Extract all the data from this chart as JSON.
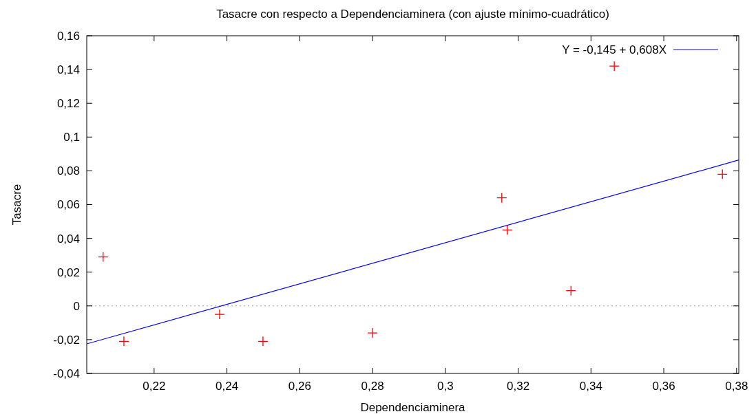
{
  "chart_data": {
    "type": "scatter",
    "title": "Tasacre con respecto a Dependenciaminera (con ajuste mínimo-cuadrático)",
    "xlabel": "Dependenciaminera",
    "ylabel": "Tasacre",
    "xlim": [
      0.2015,
      0.3806
    ],
    "ylim": [
      -0.04,
      0.16
    ],
    "xticks": [
      {
        "value": 0.22,
        "label": "0,22"
      },
      {
        "value": 0.24,
        "label": "0,24"
      },
      {
        "value": 0.26,
        "label": "0,26"
      },
      {
        "value": 0.28,
        "label": "0,28"
      },
      {
        "value": 0.3,
        "label": "0,3"
      },
      {
        "value": 0.32,
        "label": "0,32"
      },
      {
        "value": 0.34,
        "label": "0,34"
      },
      {
        "value": 0.36,
        "label": "0,36"
      },
      {
        "value": 0.38,
        "label": "0,38"
      }
    ],
    "yticks": [
      {
        "value": -0.04,
        "label": "-0,04"
      },
      {
        "value": -0.02,
        "label": "-0,02"
      },
      0,
      {
        "value": 0.02,
        "label": "0,02"
      },
      {
        "value": 0.04,
        "label": "0,04"
      },
      {
        "value": 0.06,
        "label": "0,06"
      },
      {
        "value": 0.08,
        "label": "0,08"
      },
      {
        "value": 0.1,
        "label": "0,1"
      },
      {
        "value": 0.12,
        "label": "0,12"
      },
      {
        "value": 0.14,
        "label": "0,14"
      },
      {
        "value": 0.16,
        "label": "0,16"
      }
    ],
    "grid": false,
    "legend": "top right",
    "marker": "cross",
    "ref_lines": [
      {
        "axis": "y",
        "value": 0,
        "color": "#a0a0a0",
        "line_style": "dotted"
      }
    ],
    "series": [
      {
        "color": "#ff0000",
        "x": [
          0.206,
          0.2117,
          0.238,
          0.2499,
          0.28,
          0.3155,
          0.317,
          0.3345,
          0.3464,
          0.3761
        ],
        "values": [
          0.029,
          -0.021,
          -0.005,
          -0.021,
          -0.016,
          0.064,
          0.045,
          0.009,
          0.142,
          0.078
        ]
      },
      {
        "type": "line",
        "name": "Y = -0,145 + 0,608X",
        "color": "#0000ff",
        "line_style": "solid",
        "marker": "none",
        "x": [
          0.2015,
          0.3806
        ],
        "values": [
          -0.0225,
          0.0864
        ]
      }
    ]
  }
}
